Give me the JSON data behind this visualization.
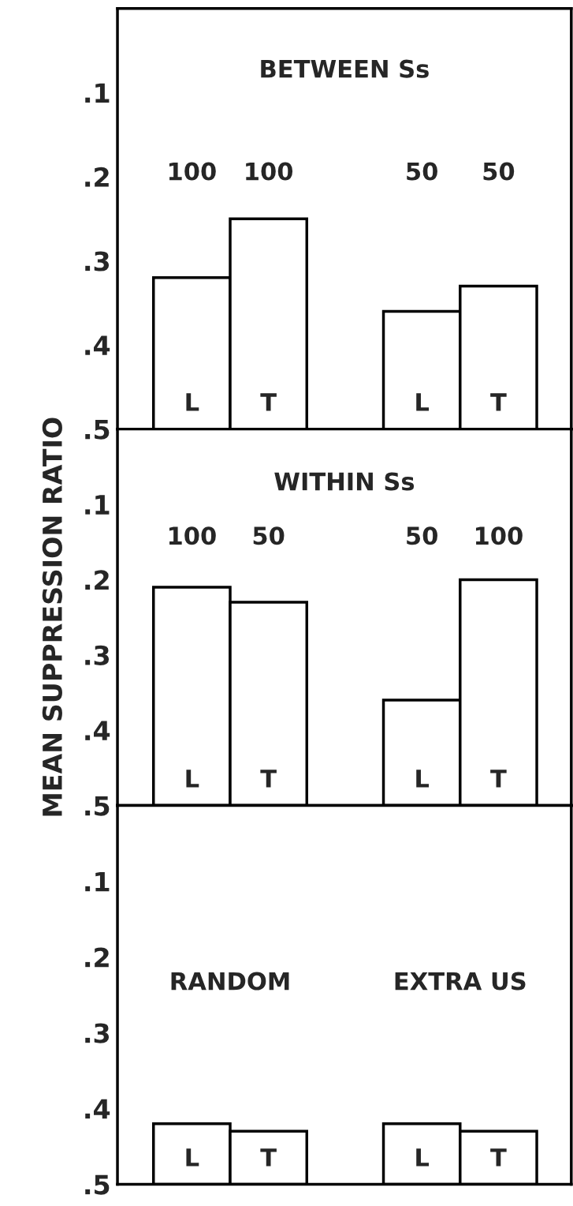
{
  "chart_data": [
    {
      "type": "bar",
      "title": "BETWEEN Ss",
      "categories": [
        "L",
        "T",
        "L",
        "T"
      ],
      "base": [
        0.5,
        0.5,
        0.5,
        0.5
      ],
      "values": [
        -0.18,
        -0.25,
        -0.14,
        -0.17
      ],
      "color": "#ffffff",
      "annotations": [
        "100",
        "100",
        "50",
        "50"
      ],
      "ylim": [
        0.5,
        0
      ],
      "yticks": [
        {
          "value": 0.1,
          "label": ".1"
        },
        {
          "value": 0.2,
          "label": ".2"
        },
        {
          "value": 0.3,
          "label": ".3"
        },
        {
          "value": 0.4,
          "label": ".4"
        },
        {
          "value": 0.5,
          "label": ".5"
        }
      ],
      "tick_labels": "y",
      "grid": false,
      "legend": false
    },
    {
      "type": "bar",
      "title": "WITHIN Ss",
      "ylabel": "MEAN SUPPRESSION RATIO",
      "categories": [
        "L",
        "T",
        "L",
        "T"
      ],
      "base": [
        0.5,
        0.5,
        0.5,
        0.5
      ],
      "values": [
        -0.29,
        -0.27,
        -0.14,
        -0.3
      ],
      "color": "#ffffff",
      "annotations": [
        "100",
        "50",
        "50",
        "100"
      ],
      "ylim": [
        0.5,
        0
      ],
      "yticks": [
        {
          "value": 0.1,
          "label": ".1"
        },
        {
          "value": 0.2,
          "label": ".2"
        },
        {
          "value": 0.3,
          "label": ".3"
        },
        {
          "value": 0.4,
          "label": ".4"
        },
        {
          "value": 0.5,
          "label": ".5"
        }
      ],
      "tick_labels": "y",
      "grid": false,
      "legend": false
    },
    {
      "type": "bar",
      "categories": [
        "L",
        "T",
        "L",
        "T"
      ],
      "base": [
        0.5,
        0.5,
        0.5,
        0.5
      ],
      "values": [
        -0.08,
        -0.07,
        -0.08,
        -0.07
      ],
      "color": "#ffffff",
      "annotations": [
        "RANDOM",
        "EXTRA US"
      ],
      "ylim": [
        0.5,
        0
      ],
      "yticks": [
        {
          "value": 0.1,
          "label": ".1"
        },
        {
          "value": 0.2,
          "label": ".2"
        },
        {
          "value": 0.3,
          "label": ".3"
        },
        {
          "value": 0.4,
          "label": ".4"
        },
        {
          "value": 0.5,
          "label": ".5"
        }
      ],
      "tick_labels": "y",
      "grid": false,
      "legend": false
    }
  ]
}
